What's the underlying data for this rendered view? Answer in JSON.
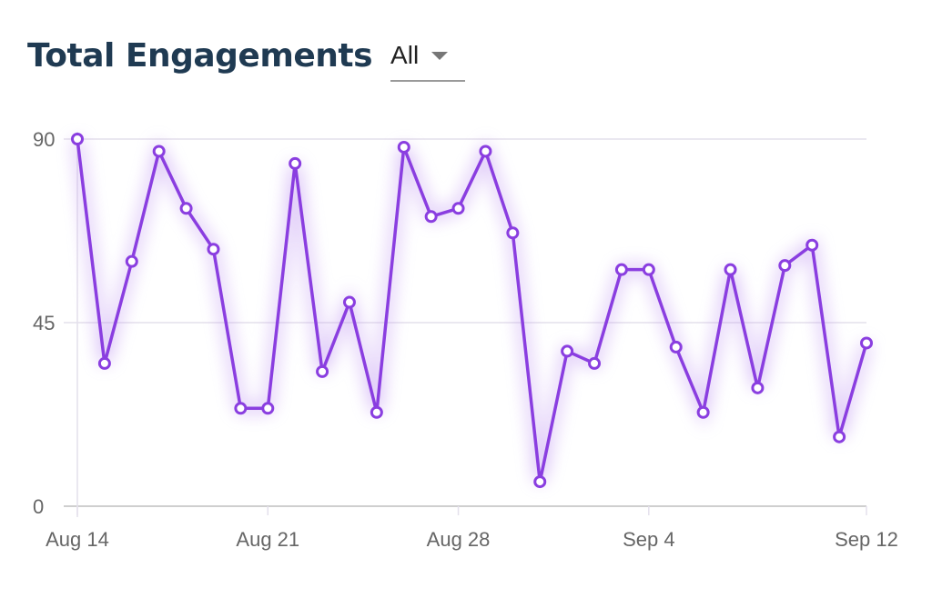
{
  "header": {
    "title": "Total Engagements",
    "filter_value": "All"
  },
  "colors": {
    "line": "#8a3ee0",
    "glow": "#b98cf0",
    "grid": "#e4e0ec",
    "axis": "#cfcfcf",
    "title": "#1f3a52"
  },
  "chart_data": {
    "type": "line",
    "title": "Total Engagements",
    "xlabel": "",
    "ylabel": "",
    "ylim": [
      0,
      90
    ],
    "yticks": [
      0,
      45,
      90
    ],
    "x_start": "2024-08-14",
    "xtick_labels": [
      "Aug 14",
      "Aug 21",
      "Aug 28",
      "Sep 4",
      "Sep 12"
    ],
    "xtick_index": [
      0,
      7,
      14,
      21,
      29
    ],
    "grid": true,
    "legend": "none",
    "series": [
      {
        "values": [
          90,
          35,
          60,
          87,
          73,
          63,
          24,
          24,
          84,
          33,
          50,
          23,
          88,
          71,
          73,
          87,
          67,
          6,
          38,
          35,
          58,
          58,
          39,
          23,
          58,
          29,
          59,
          64,
          17,
          40
        ]
      }
    ]
  }
}
